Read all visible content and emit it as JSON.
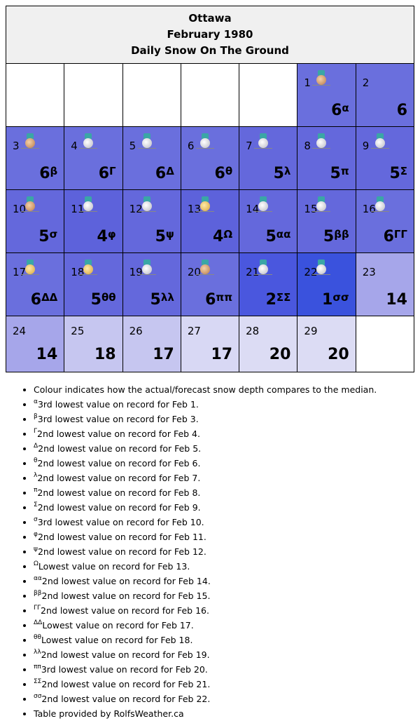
{
  "header": {
    "city": "Ottawa",
    "month": "February 1980",
    "metric": "Daily Snow On The Ground"
  },
  "weeks": [
    [
      {
        "empty": true
      },
      {
        "empty": true
      },
      {
        "empty": true
      },
      {
        "empty": true
      },
      {
        "empty": true
      },
      {
        "day": "1",
        "value": "6",
        "sup": "α",
        "medal": "bronze",
        "color": "#6a6fdd"
      },
      {
        "day": "2",
        "value": "6",
        "sup": "",
        "medal": "",
        "color": "#6a6fdd"
      }
    ],
    [
      {
        "day": "3",
        "value": "6",
        "sup": "β",
        "medal": "bronze",
        "color": "#6a6fdd"
      },
      {
        "day": "4",
        "value": "6",
        "sup": "Γ",
        "medal": "silver",
        "color": "#6a6fdd"
      },
      {
        "day": "5",
        "value": "6",
        "sup": "Δ",
        "medal": "silver",
        "color": "#6a6fdd"
      },
      {
        "day": "6",
        "value": "6",
        "sup": "θ",
        "medal": "silver",
        "color": "#6a6fdd"
      },
      {
        "day": "7",
        "value": "5",
        "sup": "λ",
        "medal": "silver",
        "color": "#6468dc"
      },
      {
        "day": "8",
        "value": "5",
        "sup": "π",
        "medal": "silver",
        "color": "#6468dc"
      },
      {
        "day": "9",
        "value": "5",
        "sup": "Σ",
        "medal": "silver",
        "color": "#6468dc"
      }
    ],
    [
      {
        "day": "10",
        "value": "5",
        "sup": "σ",
        "medal": "bronze",
        "color": "#6468dc"
      },
      {
        "day": "11",
        "value": "4",
        "sup": "φ",
        "medal": "silver",
        "color": "#5d62db"
      },
      {
        "day": "12",
        "value": "5",
        "sup": "ψ",
        "medal": "silver",
        "color": "#6468dc"
      },
      {
        "day": "13",
        "value": "4",
        "sup": "Ω",
        "medal": "gold",
        "color": "#5d62db"
      },
      {
        "day": "14",
        "value": "5",
        "sup": "αα",
        "medal": "silver",
        "color": "#6468dc"
      },
      {
        "day": "15",
        "value": "5",
        "sup": "ββ",
        "medal": "silver",
        "color": "#6468dc"
      },
      {
        "day": "16",
        "value": "6",
        "sup": "ΓΓ",
        "medal": "silver",
        "color": "#6a6fdd"
      }
    ],
    [
      {
        "day": "17",
        "value": "6",
        "sup": "ΔΔ",
        "medal": "gold",
        "color": "#6a6fdd"
      },
      {
        "day": "18",
        "value": "5",
        "sup": "θθ",
        "medal": "gold",
        "color": "#6468dc"
      },
      {
        "day": "19",
        "value": "5",
        "sup": "λλ",
        "medal": "silver",
        "color": "#6468dc"
      },
      {
        "day": "20",
        "value": "6",
        "sup": "ππ",
        "medal": "bronze",
        "color": "#6a6fdd"
      },
      {
        "day": "21",
        "value": "2",
        "sup": "ΣΣ",
        "medal": "silver",
        "color": "#4a57de"
      },
      {
        "day": "22",
        "value": "1",
        "sup": "σσ",
        "medal": "silver",
        "color": "#3a52dd"
      },
      {
        "day": "23",
        "value": "14",
        "sup": "",
        "medal": "",
        "color": "#a6a6ea"
      }
    ],
    [
      {
        "day": "24",
        "value": "14",
        "sup": "",
        "medal": "",
        "color": "#a6a6ea"
      },
      {
        "day": "25",
        "value": "18",
        "sup": "",
        "medal": "",
        "color": "#c6c6f0"
      },
      {
        "day": "26",
        "value": "17",
        "sup": "",
        "medal": "",
        "color": "#c6c6f0"
      },
      {
        "day": "27",
        "value": "17",
        "sup": "",
        "medal": "",
        "color": "#d8d8f4"
      },
      {
        "day": "28",
        "value": "20",
        "sup": "",
        "medal": "",
        "color": "#dcdcf4"
      },
      {
        "day": "29",
        "value": "20",
        "sup": "",
        "medal": "",
        "color": "#dcdcf4"
      },
      {
        "empty": true
      }
    ]
  ],
  "notes": [
    {
      "sup": "",
      "text": "Colour indicates how the actual/forecast snow depth compares to the median."
    },
    {
      "sup": "α",
      "text": "3rd lowest value on record for Feb 1."
    },
    {
      "sup": "β",
      "text": "3rd lowest value on record for Feb 3."
    },
    {
      "sup": "Γ",
      "text": "2nd lowest value on record for Feb 4."
    },
    {
      "sup": "Δ",
      "text": "2nd lowest value on record for Feb 5."
    },
    {
      "sup": "θ",
      "text": "2nd lowest value on record for Feb 6."
    },
    {
      "sup": "λ",
      "text": "2nd lowest value on record for Feb 7."
    },
    {
      "sup": "π",
      "text": "2nd lowest value on record for Feb 8."
    },
    {
      "sup": "Σ",
      "text": "2nd lowest value on record for Feb 9."
    },
    {
      "sup": "σ",
      "text": "3rd lowest value on record for Feb 10."
    },
    {
      "sup": "φ",
      "text": "2nd lowest value on record for Feb 11."
    },
    {
      "sup": "ψ",
      "text": "2nd lowest value on record for Feb 12."
    },
    {
      "sup": "Ω",
      "text": "Lowest value on record for Feb 13."
    },
    {
      "sup": "αα",
      "text": "2nd lowest value on record for Feb 14."
    },
    {
      "sup": "ββ",
      "text": "2nd lowest value on record for Feb 15."
    },
    {
      "sup": "ΓΓ",
      "text": "2nd lowest value on record for Feb 16."
    },
    {
      "sup": "ΔΔ",
      "text": "Lowest value on record for Feb 17."
    },
    {
      "sup": "θθ",
      "text": "Lowest value on record for Feb 18."
    },
    {
      "sup": "λλ",
      "text": "2nd lowest value on record for Feb 19."
    },
    {
      "sup": "ππ",
      "text": "3rd lowest value on record for Feb 20."
    },
    {
      "sup": "ΣΣ",
      "text": "2nd lowest value on record for Feb 21."
    },
    {
      "sup": "σσ",
      "text": "2nd lowest value on record for Feb 22."
    },
    {
      "sup": "",
      "text": "Table provided by RolfsWeather.ca"
    }
  ]
}
